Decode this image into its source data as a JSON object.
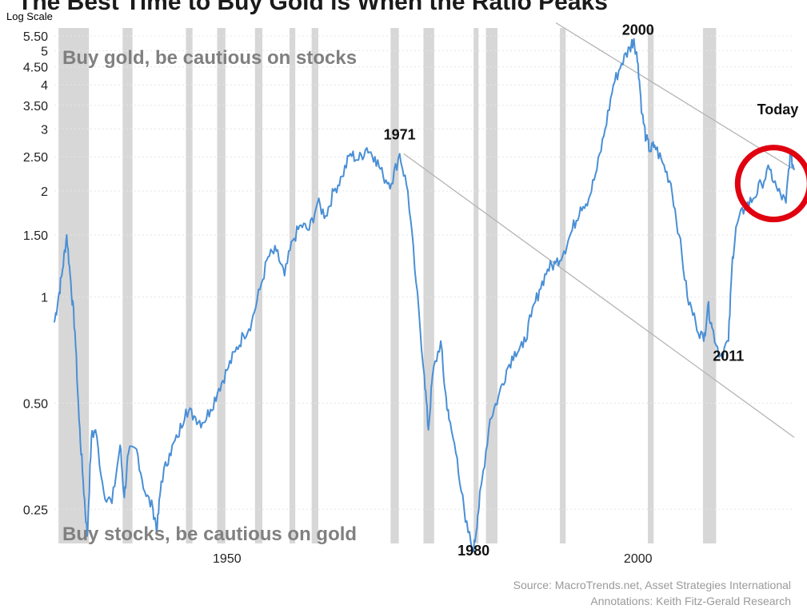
{
  "header": {
    "title": "The Best Time to Buy Gold is When the Ratio Peaks",
    "scale_label": "Log Scale"
  },
  "source": {
    "line1": "Source: MacroTrends.net, Asset Strategies International",
    "line2": "Annotations: Keith Fitz-Gerald Research"
  },
  "colors": {
    "line": "#4a8fd6",
    "recession": "#d0d0d0",
    "trend": "#b4b4b4",
    "circle": "#e0000f",
    "region_text": "#808080",
    "grid": "#e6e6e6"
  },
  "chart_data": {
    "type": "line",
    "title": "The Best Time to Buy Gold is When the Ratio Peaks",
    "y_scale": "log",
    "ylim": [
      0.2,
      5.8
    ],
    "xlim": [
      1929,
      2019
    ],
    "y_ticks": [
      {
        "value": 5.5,
        "label": "5.50"
      },
      {
        "value": 5,
        "label": "5"
      },
      {
        "value": 4.5,
        "label": "4.50"
      },
      {
        "value": 4,
        "label": "4"
      },
      {
        "value": 3.5,
        "label": "3.50"
      },
      {
        "value": 3,
        "label": "3"
      },
      {
        "value": 2.5,
        "label": "2.50"
      },
      {
        "value": 2,
        "label": "2"
      },
      {
        "value": 1.5,
        "label": "1.50"
      },
      {
        "value": 1,
        "label": "1"
      },
      {
        "value": 0.5,
        "label": "0.50"
      },
      {
        "value": 0.25,
        "label": "0.25"
      }
    ],
    "x_ticks": [
      {
        "value": 1950,
        "label": "1950"
      },
      {
        "value": 2000,
        "label": "2000"
      }
    ],
    "series": [
      {
        "x": [
          1929.0,
          1929.5,
          1930.0,
          1930.5,
          1931.0,
          1931.5,
          1932.0,
          1932.5,
          1933.0,
          1933.5,
          1934.0,
          1935.0,
          1936.0,
          1937.0,
          1937.5,
          1938.0,
          1939.0,
          1940.0,
          1941.0,
          1941.5,
          1942.0,
          1943.0,
          1944.0,
          1945.0,
          1946.0,
          1947.0,
          1948.0,
          1949.0,
          1950.0,
          1951.0,
          1952.0,
          1953.0,
          1954.0,
          1955.0,
          1956.0,
          1957.0,
          1958.0,
          1959.0,
          1960.0,
          1961.0,
          1962.0,
          1963.0,
          1964.0,
          1965.0,
          1966.0,
          1967.0,
          1968.0,
          1969.0,
          1970.0,
          1971.0,
          1972.0,
          1973.0,
          1974.0,
          1974.5,
          1975.0,
          1976.0,
          1976.5,
          1977.0,
          1978.0,
          1979.0,
          1980.0,
          1980.5,
          1981.0,
          1982.0,
          1983.0,
          1984.0,
          1985.0,
          1986.0,
          1987.0,
          1988.0,
          1989.0,
          1990.0,
          1991.0,
          1992.0,
          1993.0,
          1994.0,
          1995.0,
          1996.0,
          1997.0,
          1998.0,
          1999.0,
          1999.5,
          2000.0,
          2000.5,
          2001.0,
          2001.5,
          2002.0,
          2003.0,
          2004.0,
          2005.0,
          2006.0,
          2007.0,
          2008.0,
          2008.5,
          2009.0,
          2010.0,
          2011.0,
          2011.5,
          2012.0,
          2013.0,
          2014.0,
          2015.0,
          2016.0,
          2017.0,
          2018.0,
          2018.5,
          2019.0
        ],
        "y": [
          0.85,
          1.0,
          1.2,
          1.5,
          1.1,
          0.8,
          0.45,
          0.3,
          0.21,
          0.4,
          0.42,
          0.28,
          0.26,
          0.38,
          0.27,
          0.36,
          0.37,
          0.28,
          0.25,
          0.22,
          0.3,
          0.36,
          0.4,
          0.48,
          0.46,
          0.44,
          0.48,
          0.55,
          0.62,
          0.7,
          0.78,
          0.85,
          1.05,
          1.3,
          1.35,
          1.15,
          1.45,
          1.6,
          1.55,
          1.85,
          1.7,
          2.0,
          2.2,
          2.55,
          2.45,
          2.65,
          2.5,
          2.2,
          2.1,
          2.55,
          2.0,
          1.1,
          0.6,
          0.42,
          0.6,
          0.75,
          0.55,
          0.45,
          0.35,
          0.23,
          0.19,
          0.24,
          0.3,
          0.45,
          0.52,
          0.62,
          0.7,
          0.72,
          0.88,
          1.05,
          1.2,
          1.25,
          1.35,
          1.55,
          1.8,
          1.9,
          2.3,
          3.0,
          4.0,
          4.6,
          5.1,
          5.4,
          4.6,
          3.3,
          2.8,
          2.6,
          2.7,
          2.4,
          2.1,
          1.5,
          1.0,
          0.85,
          0.75,
          0.95,
          0.82,
          0.68,
          0.75,
          1.3,
          1.6,
          1.8,
          1.9,
          2.1,
          2.3,
          2.0,
          1.85,
          2.55,
          2.3
        ]
      }
    ],
    "shaded_periods": [
      [
        1929.5,
        1933.2
      ],
      [
        1937.3,
        1938.5
      ],
      [
        1945.0,
        1945.8
      ],
      [
        1948.8,
        1949.8
      ],
      [
        1953.4,
        1954.3
      ],
      [
        1957.6,
        1958.3
      ],
      [
        1960.3,
        1961.1
      ],
      [
        1969.9,
        1970.9
      ],
      [
        1973.9,
        1975.2
      ],
      [
        1980.0,
        1980.6
      ],
      [
        1981.5,
        1982.9
      ],
      [
        1990.5,
        1991.2
      ],
      [
        2001.2,
        2001.9
      ],
      [
        2007.9,
        2009.5
      ]
    ],
    "trendlines": [
      {
        "from": [
          1990,
          6.0
        ],
        "to": [
          2019,
          2.3
        ]
      },
      {
        "from": [
          1971.5,
          2.55
        ],
        "to": [
          2019,
          0.4
        ]
      }
    ],
    "annotations": [
      {
        "text": "2000",
        "x": 2000,
        "y": 5.55
      },
      {
        "text": "1971",
        "x": 1971,
        "y": 2.8
      },
      {
        "text": "1980",
        "x": 1980,
        "y": 0.185
      },
      {
        "text": "2011",
        "x": 2011,
        "y": 0.66
      },
      {
        "text": "Today",
        "x": 2017,
        "y": 3.3
      }
    ],
    "region_labels": {
      "top": "Buy gold, be cautious on stocks",
      "bottom": "Buy stocks, be cautious on gold"
    },
    "highlight_circle": {
      "x": 2016.5,
      "y": 2.1,
      "label": "Today"
    }
  }
}
